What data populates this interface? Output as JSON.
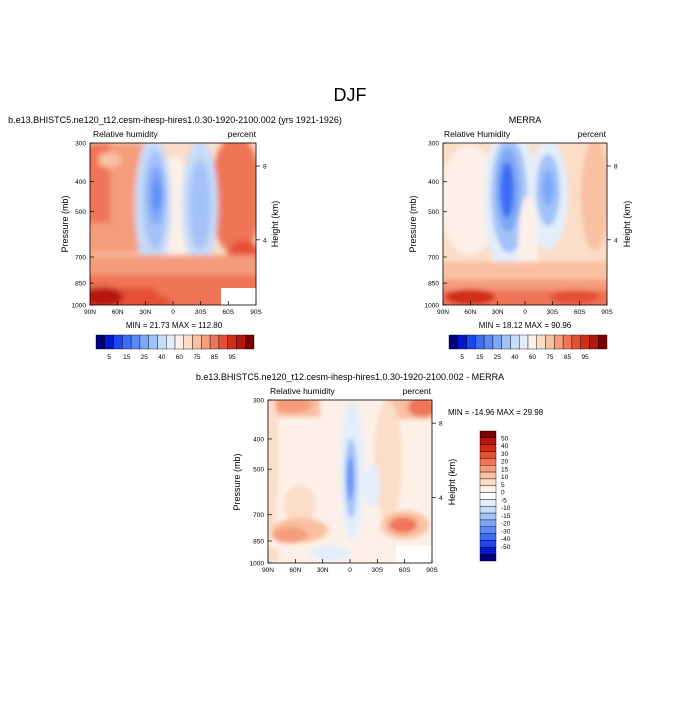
{
  "figure": {
    "title": "DJF"
  },
  "colors": {
    "cbar_top": [
      "#00007a",
      "#0019cc",
      "#1f45ed",
      "#3d6df5",
      "#5b8af5",
      "#7ea7f7",
      "#a3c2f7",
      "#c7dbfa",
      "#e4eefb",
      "#fdf0e8",
      "#fbddc8",
      "#f9c0a1",
      "#f59c7a",
      "#ef7556",
      "#e55035",
      "#d12d17",
      "#b5170b",
      "#7c0000"
    ],
    "cbar_diff": [
      "#00007a",
      "#0019cc",
      "#1f45ed",
      "#3d6df5",
      "#5b8af5",
      "#7ea7f7",
      "#a3c2f7",
      "#c7dbfa",
      "#e4eefb",
      "#ffffff",
      "#fdf0e8",
      "#fbddc8",
      "#f9c0a1",
      "#f59c7a",
      "#ef7556",
      "#e55035",
      "#d12d17",
      "#b5170b",
      "#7c0000"
    ]
  },
  "chart_data": [
    {
      "type": "heatmap",
      "panel": "model",
      "title": "b.e13.BHISTC5.ne120_t12.cesm-ihesp-hires1.0.30-1920-2100.002 (yrs 1921-1926)",
      "left_label": "Relative humidity",
      "right_label": "percent",
      "xlabel": "",
      "ylabel": "Pressure (mb)",
      "right_axis_label": "Height (km)",
      "x_ticks": [
        "90N",
        "60N",
        "30N",
        "0",
        "30S",
        "60S",
        "90S"
      ],
      "y_ticks": [
        "300",
        "400",
        "500",
        "700",
        "850",
        "1000"
      ],
      "y_right_ticks": [
        "8",
        "4"
      ],
      "min_max_text": "MIN = 21.73   MAX = 112.80",
      "min": 21.73,
      "max": 112.8,
      "colorbar_labels": [
        "5",
        "15",
        "25",
        "40",
        "60",
        "75",
        "85",
        "95"
      ]
    },
    {
      "type": "heatmap",
      "panel": "obs",
      "title": "MERRA",
      "left_label": "Relative Humidity",
      "right_label": "percent",
      "xlabel": "",
      "ylabel": "Pressure (mb)",
      "right_axis_label": "Height (km)",
      "x_ticks": [
        "90N",
        "60N",
        "30N",
        "0",
        "30S",
        "60S",
        "90S"
      ],
      "y_ticks": [
        "300",
        "400",
        "500",
        "700",
        "850",
        "1000"
      ],
      "y_right_ticks": [
        "8",
        "4"
      ],
      "min_max_text": "MIN = 18.12   MAX = 90.96",
      "min": 18.12,
      "max": 90.96,
      "colorbar_labels": [
        "5",
        "15",
        "25",
        "40",
        "60",
        "75",
        "85",
        "95"
      ]
    },
    {
      "type": "heatmap",
      "panel": "diff",
      "title": "b.e13.BHISTC5.ne120_t12.cesm-ihesp-hires1.0.30-1920-2100.002 - MERRA",
      "left_label": "Relative humidity",
      "right_label": "percent",
      "xlabel": "",
      "ylabel": "Pressure (mb)",
      "right_axis_label": "Height (km)",
      "x_ticks": [
        "90N",
        "60N",
        "30N",
        "0",
        "30S",
        "60S",
        "90S"
      ],
      "y_ticks": [
        "300",
        "400",
        "500",
        "700",
        "850",
        "1000"
      ],
      "y_right_ticks": [
        "8",
        "4"
      ],
      "min_max_text": "MIN = -14.96   MAX = 29.98",
      "min": -14.96,
      "max": 29.98,
      "colorbar_labels": [
        "50",
        "40",
        "30",
        "20",
        "15",
        "10",
        "5",
        "0",
        "-5",
        "-10",
        "-15",
        "-20",
        "-30",
        "-40",
        "-50"
      ]
    }
  ]
}
